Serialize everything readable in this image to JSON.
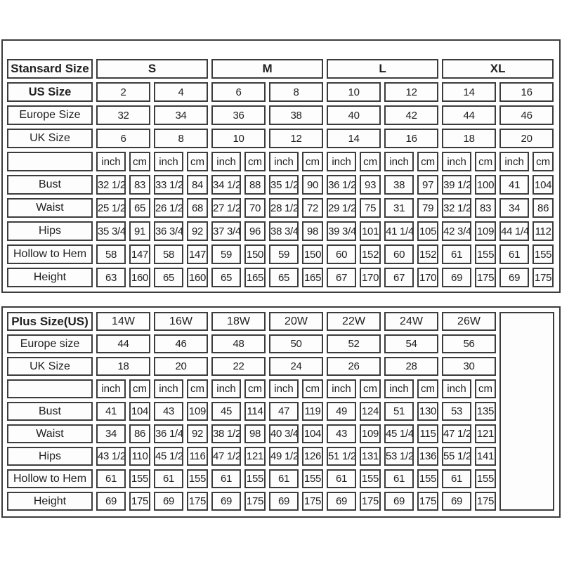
{
  "colors": {
    "border": "#3c3c3c",
    "background": "#ffffff",
    "cell_background": "#fdfdfd",
    "text": "#1f1f1f"
  },
  "chart_data": [
    {
      "type": "table",
      "name": "standard-size-chart",
      "corner_label": "Stansard Size",
      "groups_bold": true,
      "size_groups": [
        "S",
        "M",
        "L",
        "XL"
      ],
      "size_rows": [
        {
          "label": "US Size",
          "bold": true,
          "values": [
            "2",
            "4",
            "6",
            "8",
            "10",
            "12",
            "14",
            "16"
          ]
        },
        {
          "label": "Europe Size",
          "bold": false,
          "values": [
            "32",
            "34",
            "36",
            "38",
            "40",
            "42",
            "44",
            "46"
          ]
        },
        {
          "label": "UK Size",
          "bold": false,
          "values": [
            "6",
            "8",
            "10",
            "12",
            "14",
            "16",
            "18",
            "20"
          ]
        }
      ],
      "unit_pair": [
        "inch",
        "cm"
      ],
      "pairs": 8,
      "measurement_rows": [
        {
          "label": "Bust",
          "values": [
            "32 1/2",
            "83",
            "33 1/2",
            "84",
            "34 1/2",
            "88",
            "35 1/2",
            "90",
            "36 1/2",
            "93",
            "38",
            "97",
            "39 1/2",
            "100",
            "41",
            "104"
          ]
        },
        {
          "label": "Waist",
          "values": [
            "25 1/2",
            "65",
            "26 1/2",
            "68",
            "27 1/2",
            "70",
            "28 1/2",
            "72",
            "29 1/2",
            "75",
            "31",
            "79",
            "32 1/2",
            "83",
            "34",
            "86"
          ]
        },
        {
          "label": "Hips",
          "values": [
            "35 3/4",
            "91",
            "36 3/4",
            "92",
            "37 3/4",
            "96",
            "38 3/4",
            "98",
            "39 3/4",
            "101",
            "41 1/4",
            "105",
            "42 3/4",
            "109",
            "44 1/4",
            "112"
          ]
        },
        {
          "label": "Hollow to Hem",
          "values": [
            "58",
            "147",
            "58",
            "147",
            "59",
            "150",
            "59",
            "150",
            "60",
            "152",
            "60",
            "152",
            "61",
            "155",
            "61",
            "155"
          ]
        },
        {
          "label": "Height",
          "values": [
            "63",
            "160",
            "65",
            "160",
            "65",
            "165",
            "65",
            "165",
            "67",
            "170",
            "67",
            "170",
            "69",
            "175",
            "69",
            "175"
          ]
        }
      ],
      "trailing_empty_cell": false
    },
    {
      "type": "table",
      "name": "plus-size-chart",
      "corner_label": "Plus Size(US)",
      "groups_bold": false,
      "size_groups": [
        "14W",
        "16W",
        "18W",
        "20W",
        "22W",
        "24W",
        "26W"
      ],
      "size_rows": [
        {
          "label": "Europe size",
          "bold": false,
          "values": [
            "44",
            "46",
            "48",
            "50",
            "52",
            "54",
            "56"
          ]
        },
        {
          "label": "UK Size",
          "bold": false,
          "values": [
            "18",
            "20",
            "22",
            "24",
            "26",
            "28",
            "30"
          ]
        }
      ],
      "unit_pair": [
        "inch",
        "cm"
      ],
      "pairs": 7,
      "measurement_rows": [
        {
          "label": "Bust",
          "values": [
            "41",
            "104",
            "43",
            "109",
            "45",
            "114",
            "47",
            "119",
            "49",
            "124",
            "51",
            "130",
            "53",
            "135"
          ]
        },
        {
          "label": "Waist",
          "values": [
            "34",
            "86",
            "36 1/4",
            "92",
            "38 1/2",
            "98",
            "40 3/4",
            "104",
            "43",
            "109",
            "45 1/4",
            "115",
            "47 1/2",
            "121"
          ]
        },
        {
          "label": "Hips",
          "values": [
            "43 1/2",
            "110",
            "45 1/2",
            "116",
            "47 1/2",
            "121",
            "49 1/2",
            "126",
            "51 1/2",
            "131",
            "53 1/2",
            "136",
            "55 1/2",
            "141"
          ]
        },
        {
          "label": "Hollow to Hem",
          "values": [
            "61",
            "155",
            "61",
            "155",
            "61",
            "155",
            "61",
            "155",
            "61",
            "155",
            "61",
            "155",
            "61",
            "155"
          ]
        },
        {
          "label": "Height",
          "values": [
            "69",
            "175",
            "69",
            "175",
            "69",
            "175",
            "69",
            "175",
            "69",
            "175",
            "69",
            "175",
            "69",
            "175"
          ]
        }
      ],
      "trailing_empty_cell": true
    }
  ]
}
